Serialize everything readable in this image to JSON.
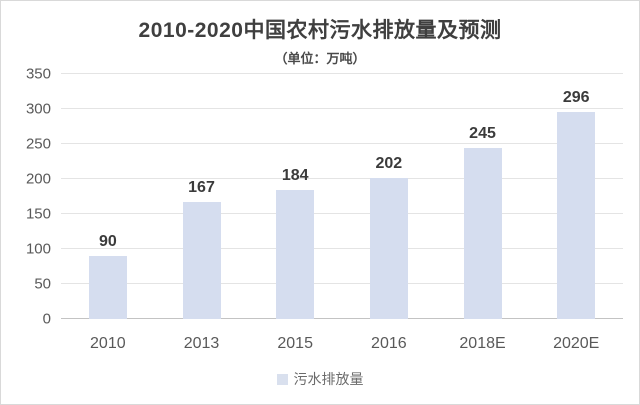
{
  "chart_data": {
    "type": "bar",
    "title": "2010-2020中国农村污水排放量及预测",
    "subtitle": "（单位：万吨）",
    "categories": [
      "2010",
      "2013",
      "2015",
      "2016",
      "2018E",
      "2020E"
    ],
    "values": [
      90,
      167,
      184,
      202,
      245,
      296
    ],
    "series_name": "污水排放量",
    "xlabel": "",
    "ylabel": "",
    "ylim": [
      0,
      350
    ],
    "y_ticks": [
      350,
      300,
      250,
      200,
      150,
      100,
      50,
      0
    ],
    "grid": true,
    "legend_position": "bottom",
    "bar_color": "#d5ddef",
    "legend_swatch_color": "#d9e0ee",
    "gridline_color": "#e4e4e4",
    "text_color": "#595959",
    "value_label_color": "#3b3b3b"
  }
}
